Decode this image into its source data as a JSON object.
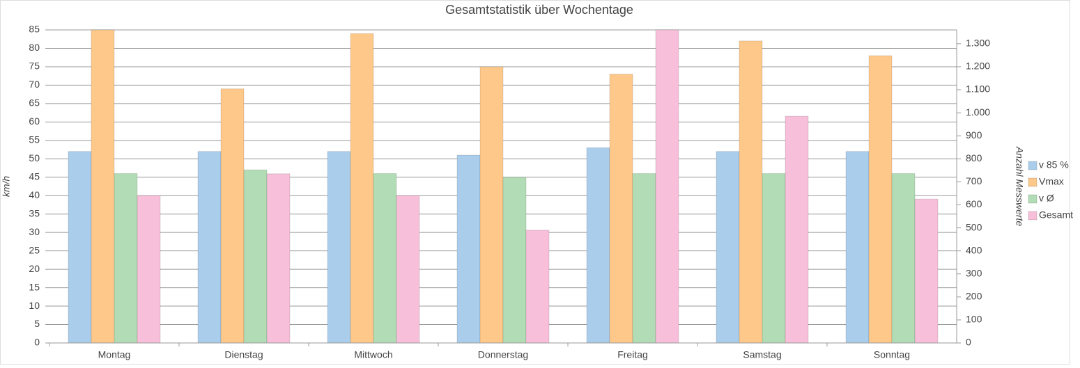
{
  "chart_data": {
    "type": "bar",
    "title": "Gesamtstatistik über Wochentage",
    "categories": [
      "Montag",
      "Dienstag",
      "Mittwoch",
      "Donnerstag",
      "Freitag",
      "Samstag",
      "Sonntag"
    ],
    "ylabel": "km/h",
    "y2label": "Anzahl Messwerte",
    "ylim": [
      0,
      85
    ],
    "yticks": [
      0,
      5,
      10,
      15,
      20,
      25,
      30,
      35,
      40,
      45,
      50,
      55,
      60,
      65,
      70,
      75,
      80,
      85
    ],
    "y2lim": [
      0,
      1360
    ],
    "y2ticks": [
      0,
      100,
      200,
      300,
      400,
      500,
      600,
      700,
      800,
      900,
      {
        "value": 1000,
        "label": "1.000"
      },
      {
        "value": 1100,
        "label": "1.100"
      },
      {
        "value": 1200,
        "label": "1.200"
      },
      {
        "value": 1300,
        "label": "1.300"
      }
    ],
    "grid": true,
    "legend": "right",
    "series": [
      {
        "name": "v 85 %",
        "color": "#aacdec",
        "values": [
          52,
          52,
          52,
          51,
          53,
          52,
          52
        ]
      },
      {
        "name": "Vmax",
        "color": "#fdc88a",
        "values": [
          85,
          69,
          84,
          75,
          73,
          82,
          78
        ]
      },
      {
        "name": "v Ø",
        "color": "#b1dcb5",
        "values": [
          46,
          47,
          46,
          45,
          46,
          46,
          46
        ]
      },
      {
        "name": "Gesamt",
        "color": "#f7bfd9",
        "axis": "y2",
        "values": [
          640,
          735,
          640,
          490,
          1360,
          985,
          625
        ]
      }
    ]
  }
}
